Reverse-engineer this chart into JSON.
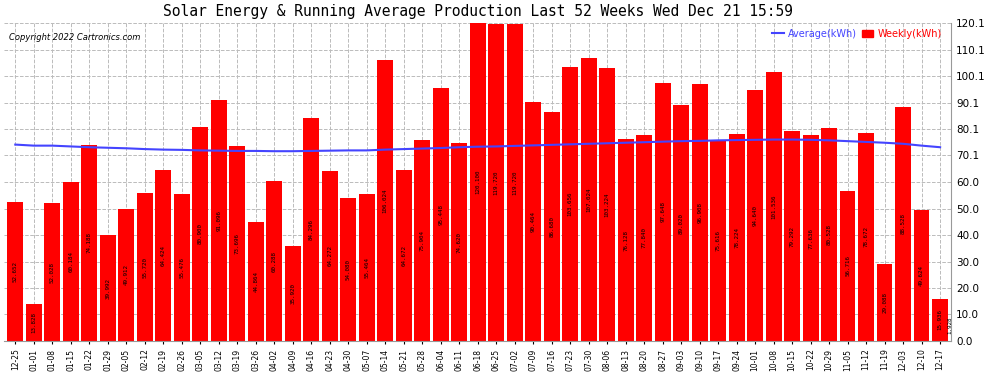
{
  "title": "Solar Energy & Running Average Production Last 52 Weeks Wed Dec 21 15:59",
  "copyright": "Copyright 2022 Cartronics.com",
  "legend_avg": "Average(kWh)",
  "legend_weekly": "Weekly(kWh)",
  "ylim": [
    0,
    120.1
  ],
  "yticks": [
    0.0,
    10.0,
    20.0,
    30.0,
    40.0,
    50.0,
    60.0,
    70.1,
    80.1,
    90.1,
    100.1,
    110.1,
    120.1
  ],
  "bar_color": "#ff0000",
  "avg_color": "#4444ff",
  "background_color": "#ffffff",
  "grid_color": "#bbbbbb",
  "categories": [
    "12-25",
    "01-01",
    "01-08",
    "01-15",
    "01-22",
    "01-29",
    "02-05",
    "02-12",
    "02-19",
    "02-26",
    "03-05",
    "03-12",
    "03-19",
    "03-26",
    "04-02",
    "04-09",
    "04-16",
    "04-23",
    "04-30",
    "05-07",
    "05-14",
    "05-21",
    "05-28",
    "06-04",
    "06-11",
    "06-18",
    "06-25",
    "07-02",
    "07-09",
    "07-16",
    "07-23",
    "07-30",
    "08-06",
    "08-13",
    "08-20",
    "08-27",
    "09-03",
    "09-10",
    "09-17",
    "09-24",
    "10-01",
    "10-08",
    "10-15",
    "10-22",
    "10-29",
    "11-05",
    "11-12",
    "11-19",
    "12-03",
    "12-10",
    "12-17"
  ],
  "weekly_values": [
    52.652,
    13.828,
    52.028,
    60.184,
    74.188,
    39.992,
    49.912,
    55.72,
    64.424,
    55.476,
    80.9,
    91.096,
    73.696,
    44.864,
    60.288,
    35.92,
    84.296,
    64.272,
    54.08,
    55.464,
    106.024,
    64.672,
    75.904,
    95.448,
    74.62,
    120.1,
    119.72,
    119.72,
    90.464,
    86.68,
    103.656,
    107.024,
    103.224,
    76.128,
    77.84,
    97.648,
    89.02,
    96.908,
    75.616,
    78.224,
    94.64,
    101.536,
    79.292,
    77.636,
    80.528,
    56.716,
    78.672,
    29.088,
    88.528,
    49.624,
    15.936
  ],
  "avg_values": [
    74.2,
    73.8,
    73.8,
    73.5,
    73.2,
    73.0,
    72.8,
    72.5,
    72.3,
    72.2,
    72.0,
    71.9,
    71.8,
    71.8,
    71.7,
    71.7,
    71.8,
    71.9,
    72.0,
    72.0,
    72.3,
    72.5,
    72.7,
    72.9,
    73.2,
    73.4,
    73.5,
    73.7,
    73.9,
    74.1,
    74.3,
    74.5,
    74.7,
    74.9,
    75.1,
    75.3,
    75.5,
    75.6,
    75.8,
    75.9,
    76.0,
    76.1,
    76.1,
    76.0,
    75.8,
    75.5,
    75.2,
    74.9,
    74.5,
    73.8,
    73.2
  ],
  "last_value": "1.928"
}
